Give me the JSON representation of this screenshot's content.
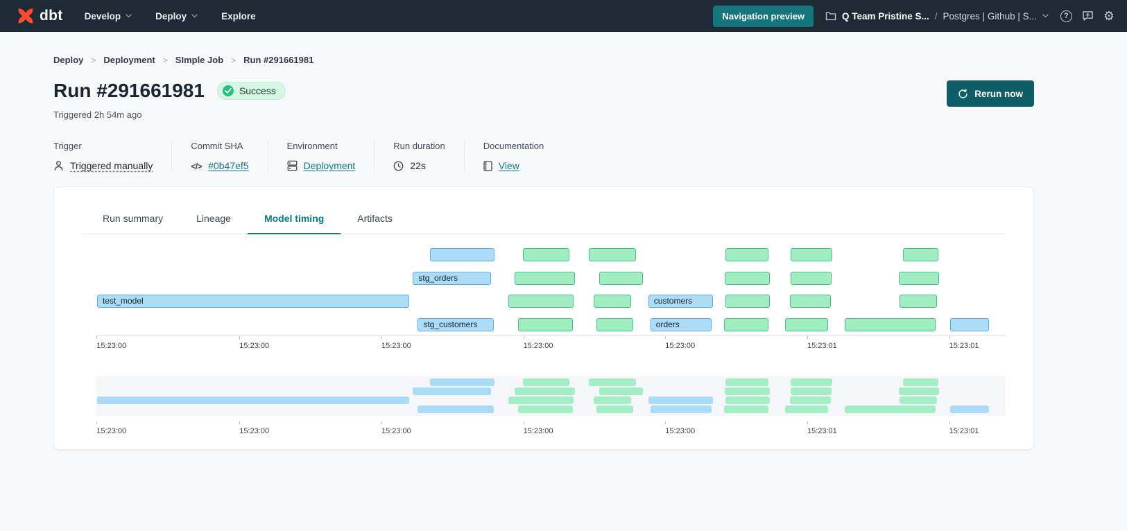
{
  "nav": {
    "logo_text": "dbt",
    "menus": [
      {
        "label": "Develop",
        "chevron": true
      },
      {
        "label": "Deploy",
        "chevron": true
      },
      {
        "label": "Explore",
        "chevron": false
      }
    ],
    "preview_button": "Navigation preview",
    "account": "Q Team Pristine S...",
    "separator": "/",
    "project": "Postgres | Github | S..."
  },
  "breadcrumb": [
    "Deploy",
    "Deployment",
    "SImple Job",
    "Run #291661981"
  ],
  "run": {
    "title": "Run #291661981",
    "status": "Success",
    "triggered": "Triggered 2h 54m ago",
    "rerun_button": "Rerun now"
  },
  "meta": [
    {
      "label": "Trigger",
      "value": "Triggered manually",
      "icon": "person-icon",
      "style": "dotted"
    },
    {
      "label": "Commit SHA",
      "value": "#0b47ef5",
      "icon": "code-icon",
      "style": "link"
    },
    {
      "label": "Environment",
      "value": "Deployment",
      "icon": "database-icon",
      "style": "link"
    },
    {
      "label": "Run duration",
      "value": "22s",
      "icon": "clock-icon",
      "style": "plain"
    },
    {
      "label": "Documentation",
      "value": "View",
      "icon": "doc-icon",
      "style": "link"
    }
  ],
  "tabs": [
    {
      "label": "Run summary",
      "active": false
    },
    {
      "label": "Lineage",
      "active": false
    },
    {
      "label": "Model timing",
      "active": true
    },
    {
      "label": "Artifacts",
      "active": false
    }
  ],
  "chart_data": {
    "type": "gantt",
    "title": "Model timing",
    "has_minimap": true,
    "colors": {
      "blue_fill": "#acdcf8",
      "blue_border": "#58aee5",
      "green_fill": "#a1edc1",
      "green_border": "#44c185",
      "minimap_blue": "#a9dbf7",
      "minimap_green": "#a4eec6",
      "accent_teal": "#0a7a85"
    },
    "ticks": [
      {
        "f": 0.001,
        "label": "15:23:00"
      },
      {
        "f": 0.158,
        "label": "15:23:00"
      },
      {
        "f": 0.314,
        "label": "15:23:00"
      },
      {
        "f": 0.47,
        "label": "15:23:00"
      },
      {
        "f": 0.626,
        "label": "15:23:00"
      },
      {
        "f": 0.782,
        "label": "15:23:01"
      },
      {
        "f": 0.938,
        "label": "15:23:01"
      }
    ],
    "rows": [
      {
        "bars": [
          {
            "start": 0.3676,
            "end": 0.4384,
            "color": "blue",
            "label": ""
          },
          {
            "start": 0.4696,
            "end": 0.5205,
            "color": "green",
            "label": ""
          },
          {
            "start": 0.5419,
            "end": 0.5936,
            "color": "green",
            "label": ""
          },
          {
            "start": 0.6918,
            "end": 0.739,
            "color": "green",
            "label": ""
          },
          {
            "start": 0.7634,
            "end": 0.8098,
            "color": "green",
            "label": ""
          },
          {
            "start": 0.8874,
            "end": 0.9262,
            "color": "green",
            "label": ""
          }
        ]
      },
      {
        "bars": [
          {
            "start": 0.3486,
            "end": 0.4346,
            "color": "blue",
            "label": "stg_orders"
          },
          {
            "start": 0.4604,
            "end": 0.5266,
            "color": "green",
            "label": ""
          },
          {
            "start": 0.5533,
            "end": 0.6012,
            "color": "green",
            "label": ""
          },
          {
            "start": 0.691,
            "end": 0.7412,
            "color": "green",
            "label": ""
          },
          {
            "start": 0.7634,
            "end": 0.809,
            "color": "green",
            "label": ""
          },
          {
            "start": 0.8828,
            "end": 0.9269,
            "color": "green",
            "label": ""
          }
        ]
      },
      {
        "bars": [
          {
            "start": 0.0015,
            "end": 0.3447,
            "color": "blue",
            "label": "test_model"
          },
          {
            "start": 0.4536,
            "end": 0.5251,
            "color": "green",
            "label": ""
          },
          {
            "start": 0.5472,
            "end": 0.5883,
            "color": "green",
            "label": ""
          },
          {
            "start": 0.6073,
            "end": 0.6781,
            "color": "blue",
            "label": "customers"
          },
          {
            "start": 0.6918,
            "end": 0.7405,
            "color": "green",
            "label": ""
          },
          {
            "start": 0.7626,
            "end": 0.8082,
            "color": "green",
            "label": ""
          },
          {
            "start": 0.8835,
            "end": 0.9246,
            "color": "green",
            "label": ""
          }
        ]
      },
      {
        "bars": [
          {
            "start": 0.3539,
            "end": 0.4376,
            "color": "blue",
            "label": "stg_customers"
          },
          {
            "start": 0.4642,
            "end": 0.5244,
            "color": "green",
            "label": ""
          },
          {
            "start": 0.5502,
            "end": 0.5906,
            "color": "green",
            "label": ""
          },
          {
            "start": 0.6096,
            "end": 0.6766,
            "color": "blue",
            "label": "orders"
          },
          {
            "start": 0.6903,
            "end": 0.739,
            "color": "green",
            "label": ""
          },
          {
            "start": 0.758,
            "end": 0.8052,
            "color": "green",
            "label": ""
          },
          {
            "start": 0.8235,
            "end": 0.9231,
            "color": "green",
            "label": ""
          },
          {
            "start": 0.9391,
            "end": 0.9817,
            "color": "blue",
            "label": ""
          }
        ]
      }
    ]
  }
}
